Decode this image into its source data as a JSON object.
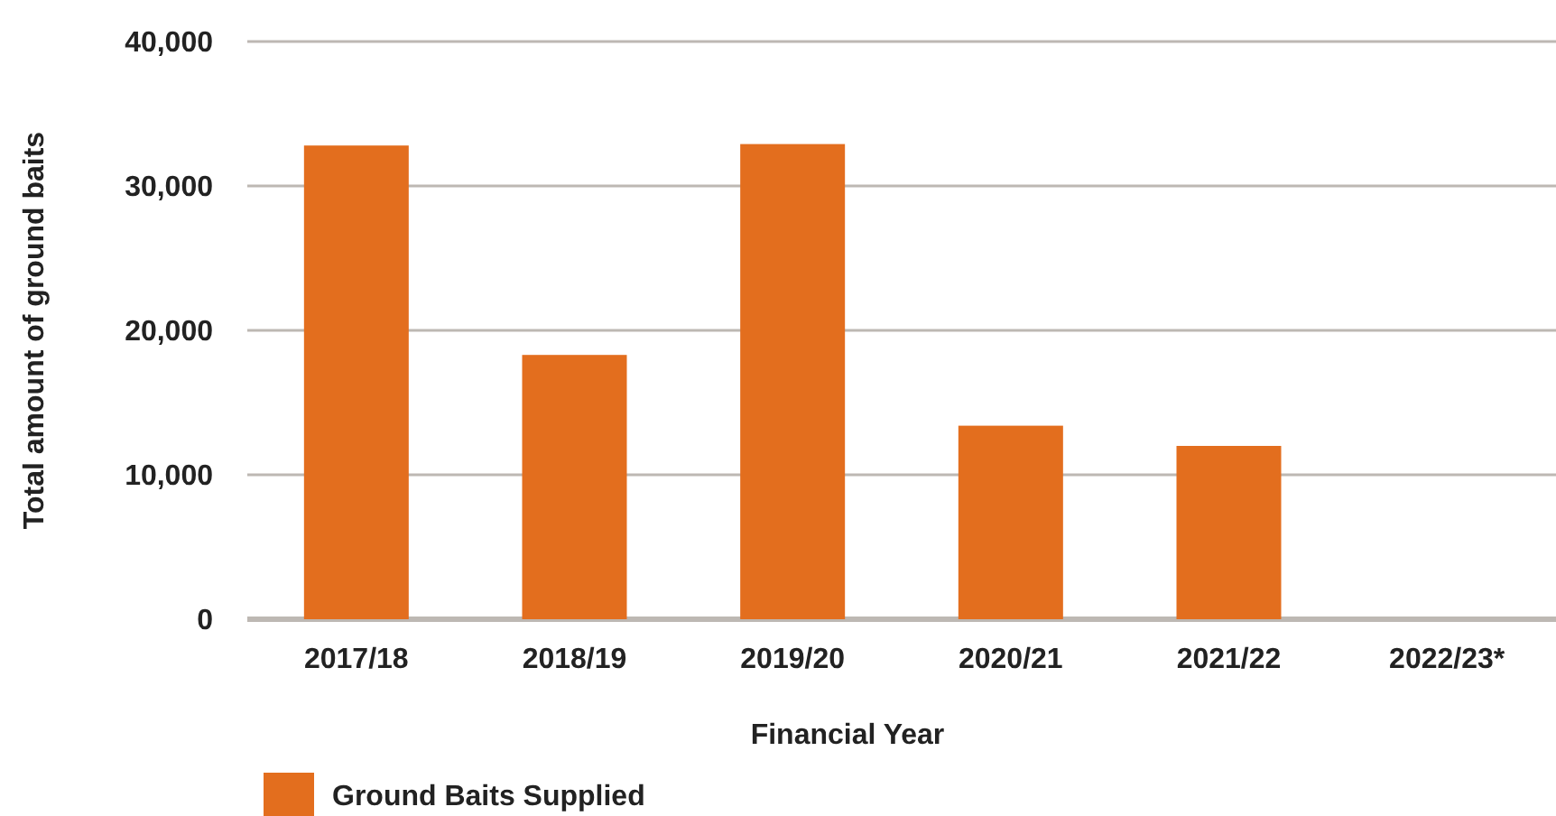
{
  "chart_data": {
    "type": "bar",
    "xlabel": "Financial Year",
    "ylabel": "Total amount of ground baits",
    "categories": [
      "2017/18",
      "2018/19",
      "2019/20",
      "2020/21",
      "2021/22",
      "2022/23*"
    ],
    "series": [
      {
        "name": "Ground Baits Supplied",
        "color": "#e36e1e",
        "values": [
          32800,
          18300,
          32900,
          13400,
          12000,
          null
        ]
      }
    ],
    "ylim": [
      0,
      40000
    ],
    "yticks": [
      {
        "value": 0,
        "label": "0"
      },
      {
        "value": 10000,
        "label": "10,000"
      },
      {
        "value": 20000,
        "label": "20,000"
      },
      {
        "value": 30000,
        "label": "30,000"
      },
      {
        "value": 40000,
        "label": "40,000"
      }
    ],
    "grid": "y",
    "legend": "bottom left"
  }
}
